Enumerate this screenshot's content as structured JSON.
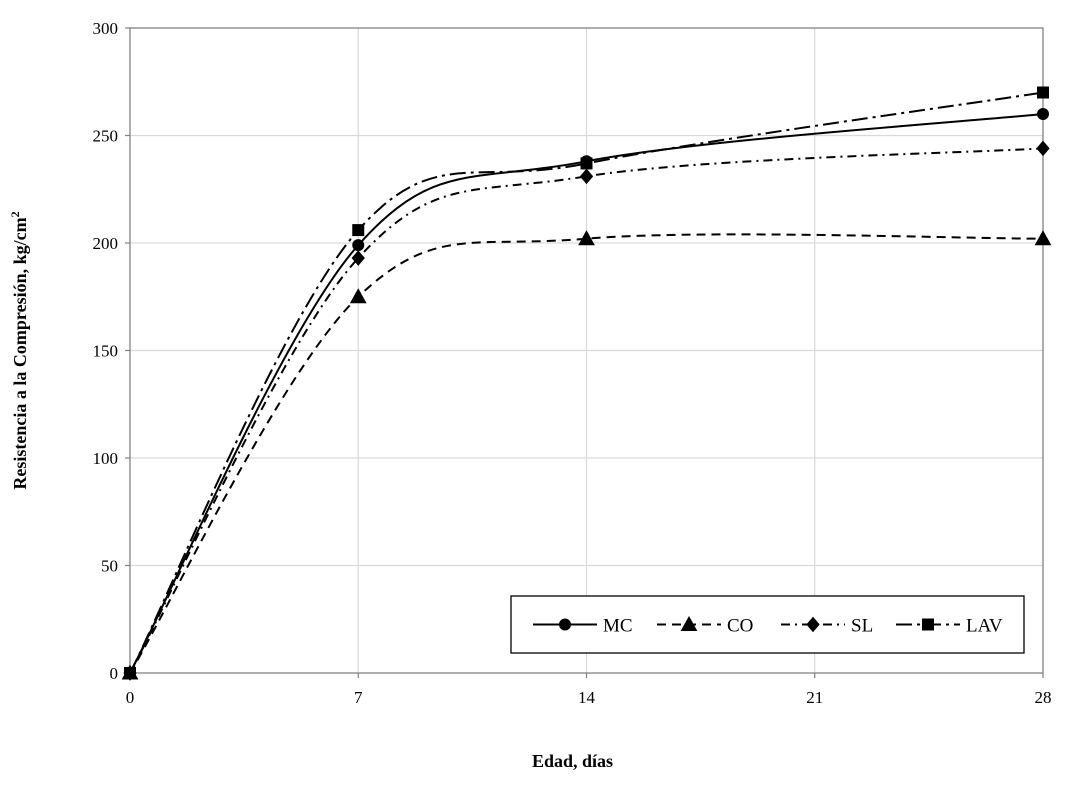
{
  "chart_data": {
    "type": "line",
    "title": "",
    "xlabel": "Edad, días",
    "ylabel_main": "Resistencia a la Compresión, kg/cm",
    "ylabel_sup": "2",
    "x": [
      0,
      7,
      14,
      28
    ],
    "x_ticks": [
      "0",
      "7",
      "14",
      "21",
      "28"
    ],
    "x_tick_values": [
      0,
      7,
      14,
      21,
      28
    ],
    "xlim": [
      0,
      28
    ],
    "y_ticks": [
      "0",
      "50",
      "100",
      "150",
      "200",
      "250",
      "300"
    ],
    "y_tick_values": [
      0,
      50,
      100,
      150,
      200,
      250,
      300
    ],
    "ylim": [
      0,
      300
    ],
    "grid": true,
    "legend_position": "bottom-right",
    "series": [
      {
        "name": "MC",
        "values": [
          0,
          199,
          238,
          260
        ],
        "marker": "circle",
        "dash": ""
      },
      {
        "name": "CO",
        "values": [
          0,
          175,
          202,
          202
        ],
        "marker": "triangle",
        "dash": "9 6"
      },
      {
        "name": "SL",
        "values": [
          0,
          193,
          231,
          244
        ],
        "marker": "diamond",
        "dash": "9 5 2 5"
      },
      {
        "name": "LAV",
        "values": [
          0,
          206,
          237,
          270
        ],
        "marker": "square",
        "dash": "16 5 3 5"
      }
    ]
  }
}
